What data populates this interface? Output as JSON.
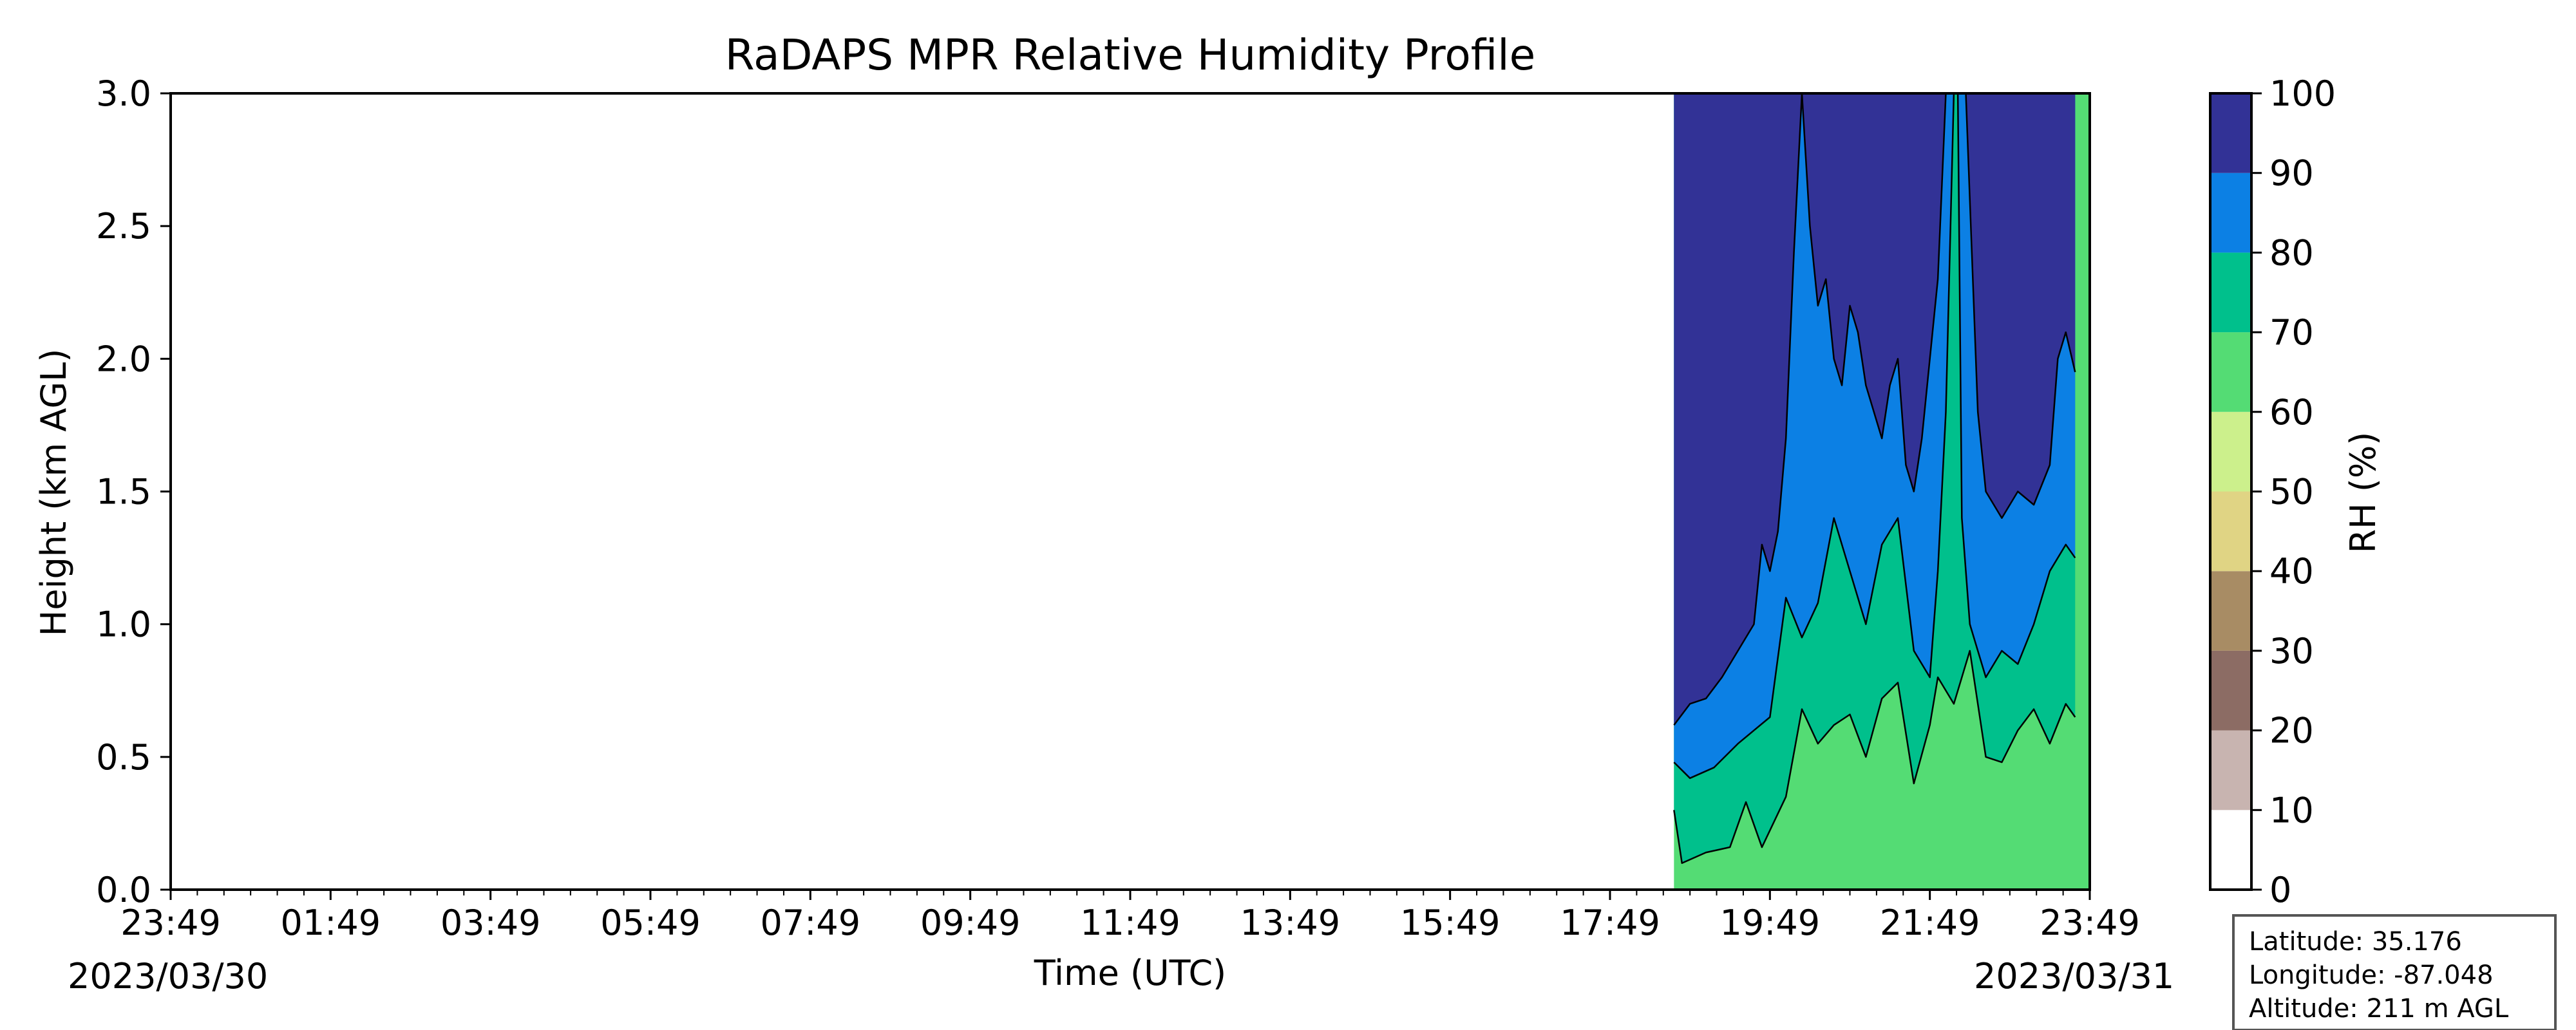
{
  "chart_data": {
    "type": "heatmap",
    "title": "RaDAPS MPR Relative Humidity Profile",
    "xlabel": "Time (UTC)",
    "ylabel": "Height (km AGL)",
    "x_ticks": [
      "23:49",
      "01:49",
      "03:49",
      "05:49",
      "07:49",
      "09:49",
      "11:49",
      "13:49",
      "15:49",
      "17:49",
      "19:49",
      "21:49",
      "23:49"
    ],
    "x_dates": [
      "2023/03/30",
      "2023/03/31"
    ],
    "xlim_hours": [
      0,
      24
    ],
    "y_ticks": [
      "0.0",
      "0.5",
      "1.0",
      "1.5",
      "2.0",
      "2.5",
      "3.0"
    ],
    "ylim": [
      0,
      3
    ],
    "data_start_hours": 18.8,
    "colorbar": {
      "label": "RH (%)",
      "ticks": [
        "0",
        "10",
        "20",
        "30",
        "40",
        "50",
        "60",
        "70",
        "80",
        "90",
        "100"
      ],
      "levels": [
        0,
        10,
        20,
        30,
        40,
        50,
        60,
        70,
        80,
        90,
        100
      ],
      "colors": [
        "#ffffff",
        "#c8b4b0",
        "#8c6c64",
        "#a88c64",
        "#e0d484",
        "#ccf08c",
        "#54dc74",
        "#00c08c",
        "#0c80e4",
        "#323296"
      ]
    },
    "contours": {
      "rh70_height_km": [
        [
          18.8,
          0.3
        ],
        [
          18.9,
          0.1
        ],
        [
          19.2,
          0.14
        ],
        [
          19.5,
          0.16
        ],
        [
          19.7,
          0.33
        ],
        [
          19.9,
          0.16
        ],
        [
          20.2,
          0.35
        ],
        [
          20.4,
          0.68
        ],
        [
          20.6,
          0.55
        ],
        [
          20.8,
          0.62
        ],
        [
          21.0,
          0.66
        ],
        [
          21.2,
          0.5
        ],
        [
          21.4,
          0.72
        ],
        [
          21.6,
          0.78
        ],
        [
          21.8,
          0.4
        ],
        [
          22.0,
          0.62
        ],
        [
          22.1,
          0.8
        ],
        [
          22.3,
          0.7
        ],
        [
          22.5,
          0.9
        ],
        [
          22.7,
          0.5
        ],
        [
          22.9,
          0.48
        ],
        [
          23.1,
          0.6
        ],
        [
          23.3,
          0.68
        ],
        [
          23.5,
          0.55
        ],
        [
          23.7,
          0.7
        ],
        [
          23.817,
          0.65
        ]
      ],
      "rh80_height_km": [
        [
          18.8,
          0.48
        ],
        [
          19.0,
          0.42
        ],
        [
          19.3,
          0.46
        ],
        [
          19.6,
          0.55
        ],
        [
          19.8,
          0.6
        ],
        [
          20.0,
          0.65
        ],
        [
          20.2,
          1.1
        ],
        [
          20.4,
          0.95
        ],
        [
          20.6,
          1.08
        ],
        [
          20.8,
          1.4
        ],
        [
          21.0,
          1.2
        ],
        [
          21.2,
          1.0
        ],
        [
          21.4,
          1.3
        ],
        [
          21.6,
          1.4
        ],
        [
          21.8,
          0.9
        ],
        [
          22.0,
          0.8
        ],
        [
          22.1,
          1.2
        ],
        [
          22.2,
          1.8
        ],
        [
          22.3,
          3.0
        ],
        [
          22.35,
          3.0
        ],
        [
          22.4,
          1.4
        ],
        [
          22.5,
          1.0
        ],
        [
          22.7,
          0.8
        ],
        [
          22.9,
          0.9
        ],
        [
          23.1,
          0.85
        ],
        [
          23.3,
          1.0
        ],
        [
          23.5,
          1.2
        ],
        [
          23.7,
          1.3
        ],
        [
          23.817,
          1.25
        ]
      ],
      "rh90_height_km": [
        [
          18.8,
          0.62
        ],
        [
          19.0,
          0.7
        ],
        [
          19.2,
          0.72
        ],
        [
          19.4,
          0.8
        ],
        [
          19.6,
          0.9
        ],
        [
          19.8,
          1.0
        ],
        [
          19.9,
          1.3
        ],
        [
          20.0,
          1.2
        ],
        [
          20.1,
          1.35
        ],
        [
          20.2,
          1.7
        ],
        [
          20.3,
          2.4
        ],
        [
          20.4,
          3.0
        ],
        [
          20.5,
          2.5
        ],
        [
          20.6,
          2.2
        ],
        [
          20.7,
          2.3
        ],
        [
          20.8,
          2.0
        ],
        [
          20.9,
          1.9
        ],
        [
          21.0,
          2.2
        ],
        [
          21.1,
          2.1
        ],
        [
          21.2,
          1.9
        ],
        [
          21.3,
          1.8
        ],
        [
          21.4,
          1.7
        ],
        [
          21.5,
          1.9
        ],
        [
          21.6,
          2.0
        ],
        [
          21.7,
          1.6
        ],
        [
          21.8,
          1.5
        ],
        [
          21.9,
          1.7
        ],
        [
          22.0,
          2.0
        ],
        [
          22.1,
          2.3
        ],
        [
          22.2,
          3.0
        ],
        [
          22.45,
          3.0
        ],
        [
          22.6,
          1.8
        ],
        [
          22.7,
          1.5
        ],
        [
          22.9,
          1.4
        ],
        [
          23.1,
          1.5
        ],
        [
          23.3,
          1.45
        ],
        [
          23.5,
          1.6
        ],
        [
          23.6,
          2.0
        ],
        [
          23.7,
          2.1
        ],
        [
          23.817,
          1.95
        ]
      ]
    }
  },
  "info_box": {
    "latitude": "Latitude: 35.176",
    "longitude": "Longitude: -87.048",
    "altitude": "Altitude: 211 m AGL"
  }
}
